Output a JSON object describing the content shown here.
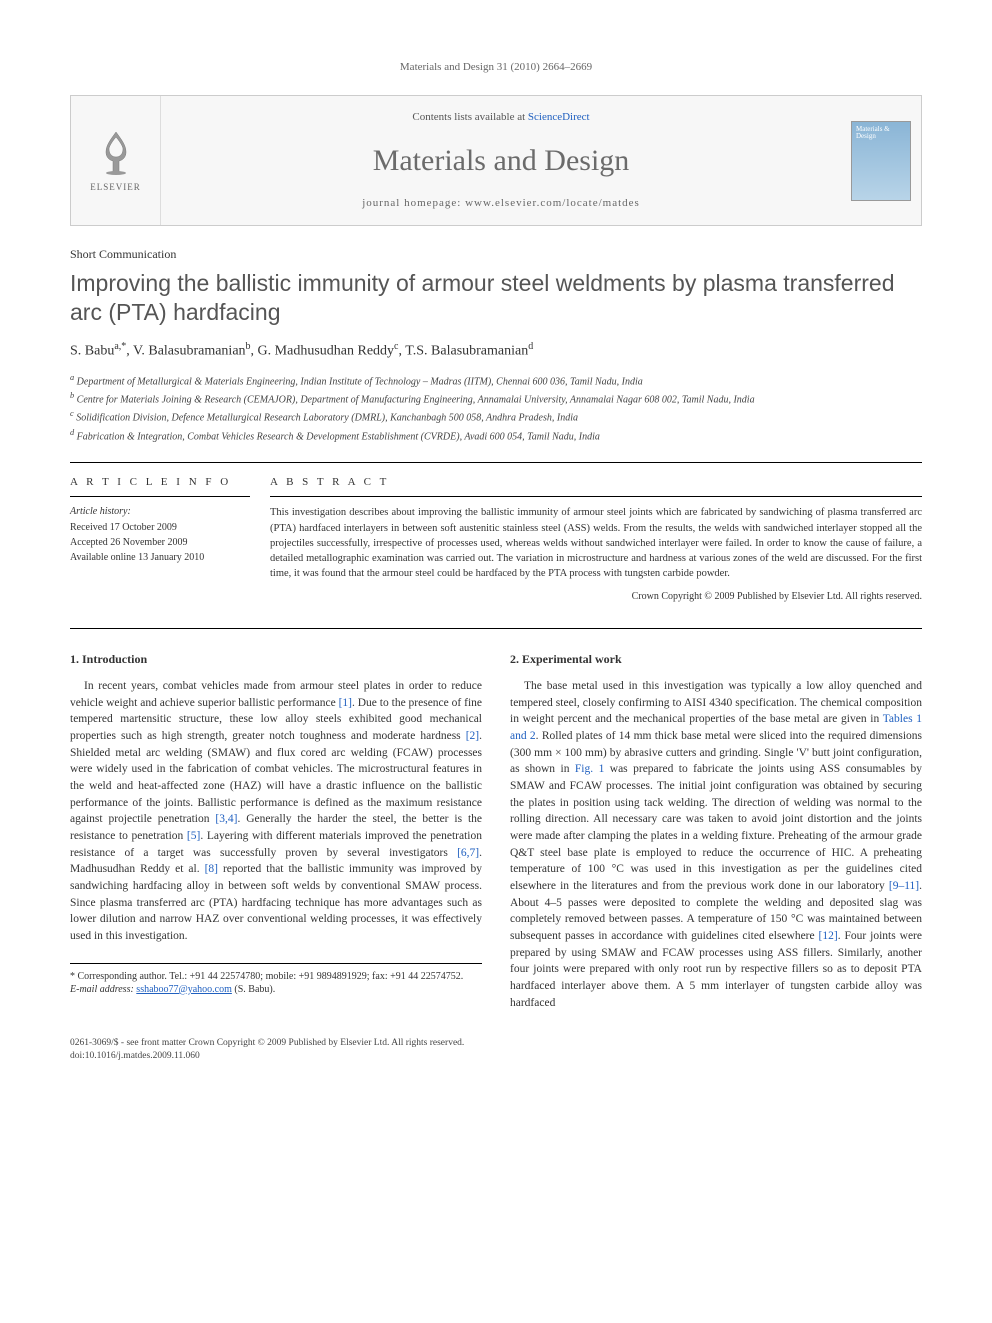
{
  "running_head": "Materials and Design 31 (2010) 2664–2669",
  "header": {
    "elsevier_label": "ELSEVIER",
    "contents_prefix": "Contents lists available at ",
    "contents_link": "ScienceDirect",
    "journal_name": "Materials and Design",
    "homepage_prefix": "journal homepage: ",
    "homepage_url": "www.elsevier.com/locate/matdes",
    "cover_text": "Materials & Design"
  },
  "section_label": "Short Communication",
  "title": "Improving the ballistic immunity of armour steel weldments by plasma transferred arc (PTA) hardfacing",
  "authors_html": "S. Babu<sup>a,*</sup>, V. Balasubramanian<sup>b</sup>, G. Madhusudhan Reddy<sup>c</sup>, T.S. Balasubramanian<sup>d</sup>",
  "affiliations": [
    {
      "sup": "a",
      "text": "Department of Metallurgical & Materials Engineering, Indian Institute of Technology – Madras (IITM), Chennai 600 036, Tamil Nadu, India"
    },
    {
      "sup": "b",
      "text": "Centre for Materials Joining & Research (CEMAJOR), Department of Manufacturing Engineering, Annamalai University, Annamalai Nagar 608 002, Tamil Nadu, India"
    },
    {
      "sup": "c",
      "text": "Solidification Division, Defence Metallurgical Research Laboratory (DMRL), Kanchanbagh 500 058, Andhra Pradesh, India"
    },
    {
      "sup": "d",
      "text": "Fabrication & Integration, Combat Vehicles Research & Development Establishment (CVRDE), Avadi 600 054, Tamil Nadu, India"
    }
  ],
  "article_info": {
    "heading": "A R T I C L E   I N F O",
    "history_label": "Article history:",
    "received": "Received 17 October 2009",
    "accepted": "Accepted 26 November 2009",
    "online": "Available online 13 January 2010"
  },
  "abstract": {
    "heading": "A B S T R A C T",
    "text": "This investigation describes about improving the ballistic immunity of armour steel joints which are fabricated by sandwiching of plasma transferred arc (PTA) hardfaced interlayers in between soft austenitic stainless steel (ASS) welds. From the results, the welds with sandwiched interlayer stopped all the projectiles successfully, irrespective of processes used, whereas welds without sandwiched interlayer were failed. In order to know the cause of failure, a detailed metallographic examination was carried out. The variation in microstructure and hardness at various zones of the weld are discussed. For the first time, it was found that the armour steel could be hardfaced by the PTA process with tungsten carbide powder.",
    "copyright": "Crown Copyright © 2009 Published by Elsevier Ltd. All rights reserved."
  },
  "body": {
    "left": {
      "heading": "1. Introduction",
      "para": "In recent years, combat vehicles made from armour steel plates in order to reduce vehicle weight and achieve superior ballistic performance [1]. Due to the presence of fine tempered martensitic structure, these low alloy steels exhibited good mechanical properties such as high strength, greater notch toughness and moderate hardness [2]. Shielded metal arc welding (SMAW) and flux cored arc welding (FCAW) processes were widely used in the fabrication of combat vehicles. The microstructural features in the weld and heat-affected zone (HAZ) will have a drastic influence on the ballistic performance of the joints. Ballistic performance is defined as the maximum resistance against projectile penetration [3,4]. Generally the harder the steel, the better is the resistance to penetration [5]. Layering with different materials improved the penetration resistance of a target was successfully proven by several investigators [6,7]. Madhusudhan Reddy et al. [8] reported that the ballistic immunity was improved by sandwiching hardfacing alloy in between soft welds by conventional SMAW process. Since plasma transferred arc (PTA) hardfacing technique has more advantages such as lower dilution and narrow HAZ over conventional welding processes, it was effectively used in this investigation.",
      "refs": [
        "[1]",
        "[2]",
        "[3,4]",
        "[5]",
        "[6,7]",
        "[8]"
      ]
    },
    "right": {
      "heading": "2. Experimental work",
      "para": "The base metal used in this investigation was typically a low alloy quenched and tempered steel, closely confirming to AISI 4340 specification. The chemical composition in weight percent and the mechanical properties of the base metal are given in Tables 1 and 2. Rolled plates of 14 mm thick base metal were sliced into the required dimensions (300 mm × 100 mm) by abrasive cutters and grinding. Single 'V' butt joint configuration, as shown in Fig. 1 was prepared to fabricate the joints using ASS consumables by SMAW and FCAW processes. The initial joint configuration was obtained by securing the plates in position using tack welding. The direction of welding was normal to the rolling direction. All necessary care was taken to avoid joint distortion and the joints were made after clamping the plates in a welding fixture. Preheating of the armour grade Q&T steel base plate is employed to reduce the occurrence of HIC. A preheating temperature of 100 °C was used in this investigation as per the guidelines cited elsewhere in the literatures and from the previous work done in our laboratory [9–11]. About 4–5 passes were deposited to complete the welding and deposited slag was completely removed between passes. A temperature of 150 °C was maintained between subsequent passes in accordance with guidelines cited elsewhere [12]. Four joints were prepared by using SMAW and FCAW processes using ASS fillers. Similarly, another four joints were prepared with only root run by respective fillers so as to deposit PTA hardfaced interlayer above them. A 5 mm interlayer of tungsten carbide alloy was hardfaced",
      "refs": [
        "Tables 1 and 2",
        "Fig. 1",
        "[9–11]",
        "[12]"
      ]
    }
  },
  "corresponding": {
    "star": "*",
    "label": "Corresponding author. Tel.: +91 44 22574780; mobile: +91 9894891929; fax: +91 44 22574752.",
    "email_label": "E-mail address:",
    "email": "sshaboo77@yahoo.com",
    "email_who": "(S. Babu)."
  },
  "footer": {
    "line1": "0261-3069/$ - see front matter Crown Copyright © 2009 Published by Elsevier Ltd. All rights reserved.",
    "line2": "doi:10.1016/j.matdes.2009.11.060"
  },
  "colors": {
    "link": "#2060c0",
    "title_gray": "#555555",
    "journal_gray": "#6b6b6b",
    "cover_top": "#8ab5d6",
    "cover_bottom": "#b8d4e8"
  }
}
